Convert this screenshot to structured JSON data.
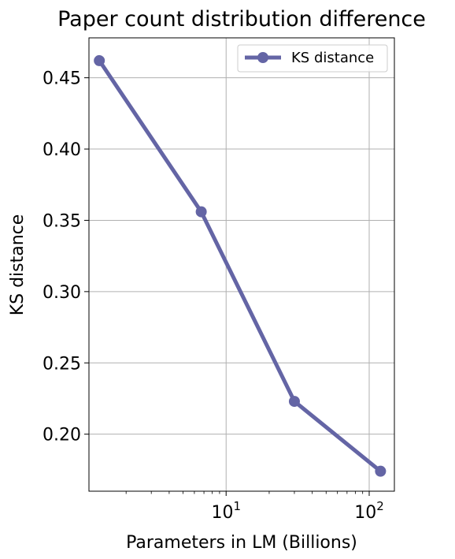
{
  "chart_data": {
    "type": "line",
    "title": "Paper count distribution difference",
    "xlabel": "Parameters in LM (Billions)",
    "ylabel": "KS distance",
    "x_scale": "log",
    "xlim": [
      1.1,
      150
    ],
    "ylim": [
      0.16,
      0.478
    ],
    "grid": true,
    "legend_position": "top-right",
    "x_ticks": [
      {
        "value": 10,
        "base": "10",
        "exp": "1"
      },
      {
        "value": 100,
        "base": "10",
        "exp": "2"
      }
    ],
    "y_ticks": [
      "0.20",
      "0.25",
      "0.30",
      "0.35",
      "0.40",
      "0.45"
    ],
    "series": [
      {
        "name": "KS distance",
        "color": "#6465a5",
        "x": [
          1.3,
          6.7,
          30,
          120
        ],
        "y": [
          0.462,
          0.356,
          0.223,
          0.174
        ]
      }
    ]
  }
}
